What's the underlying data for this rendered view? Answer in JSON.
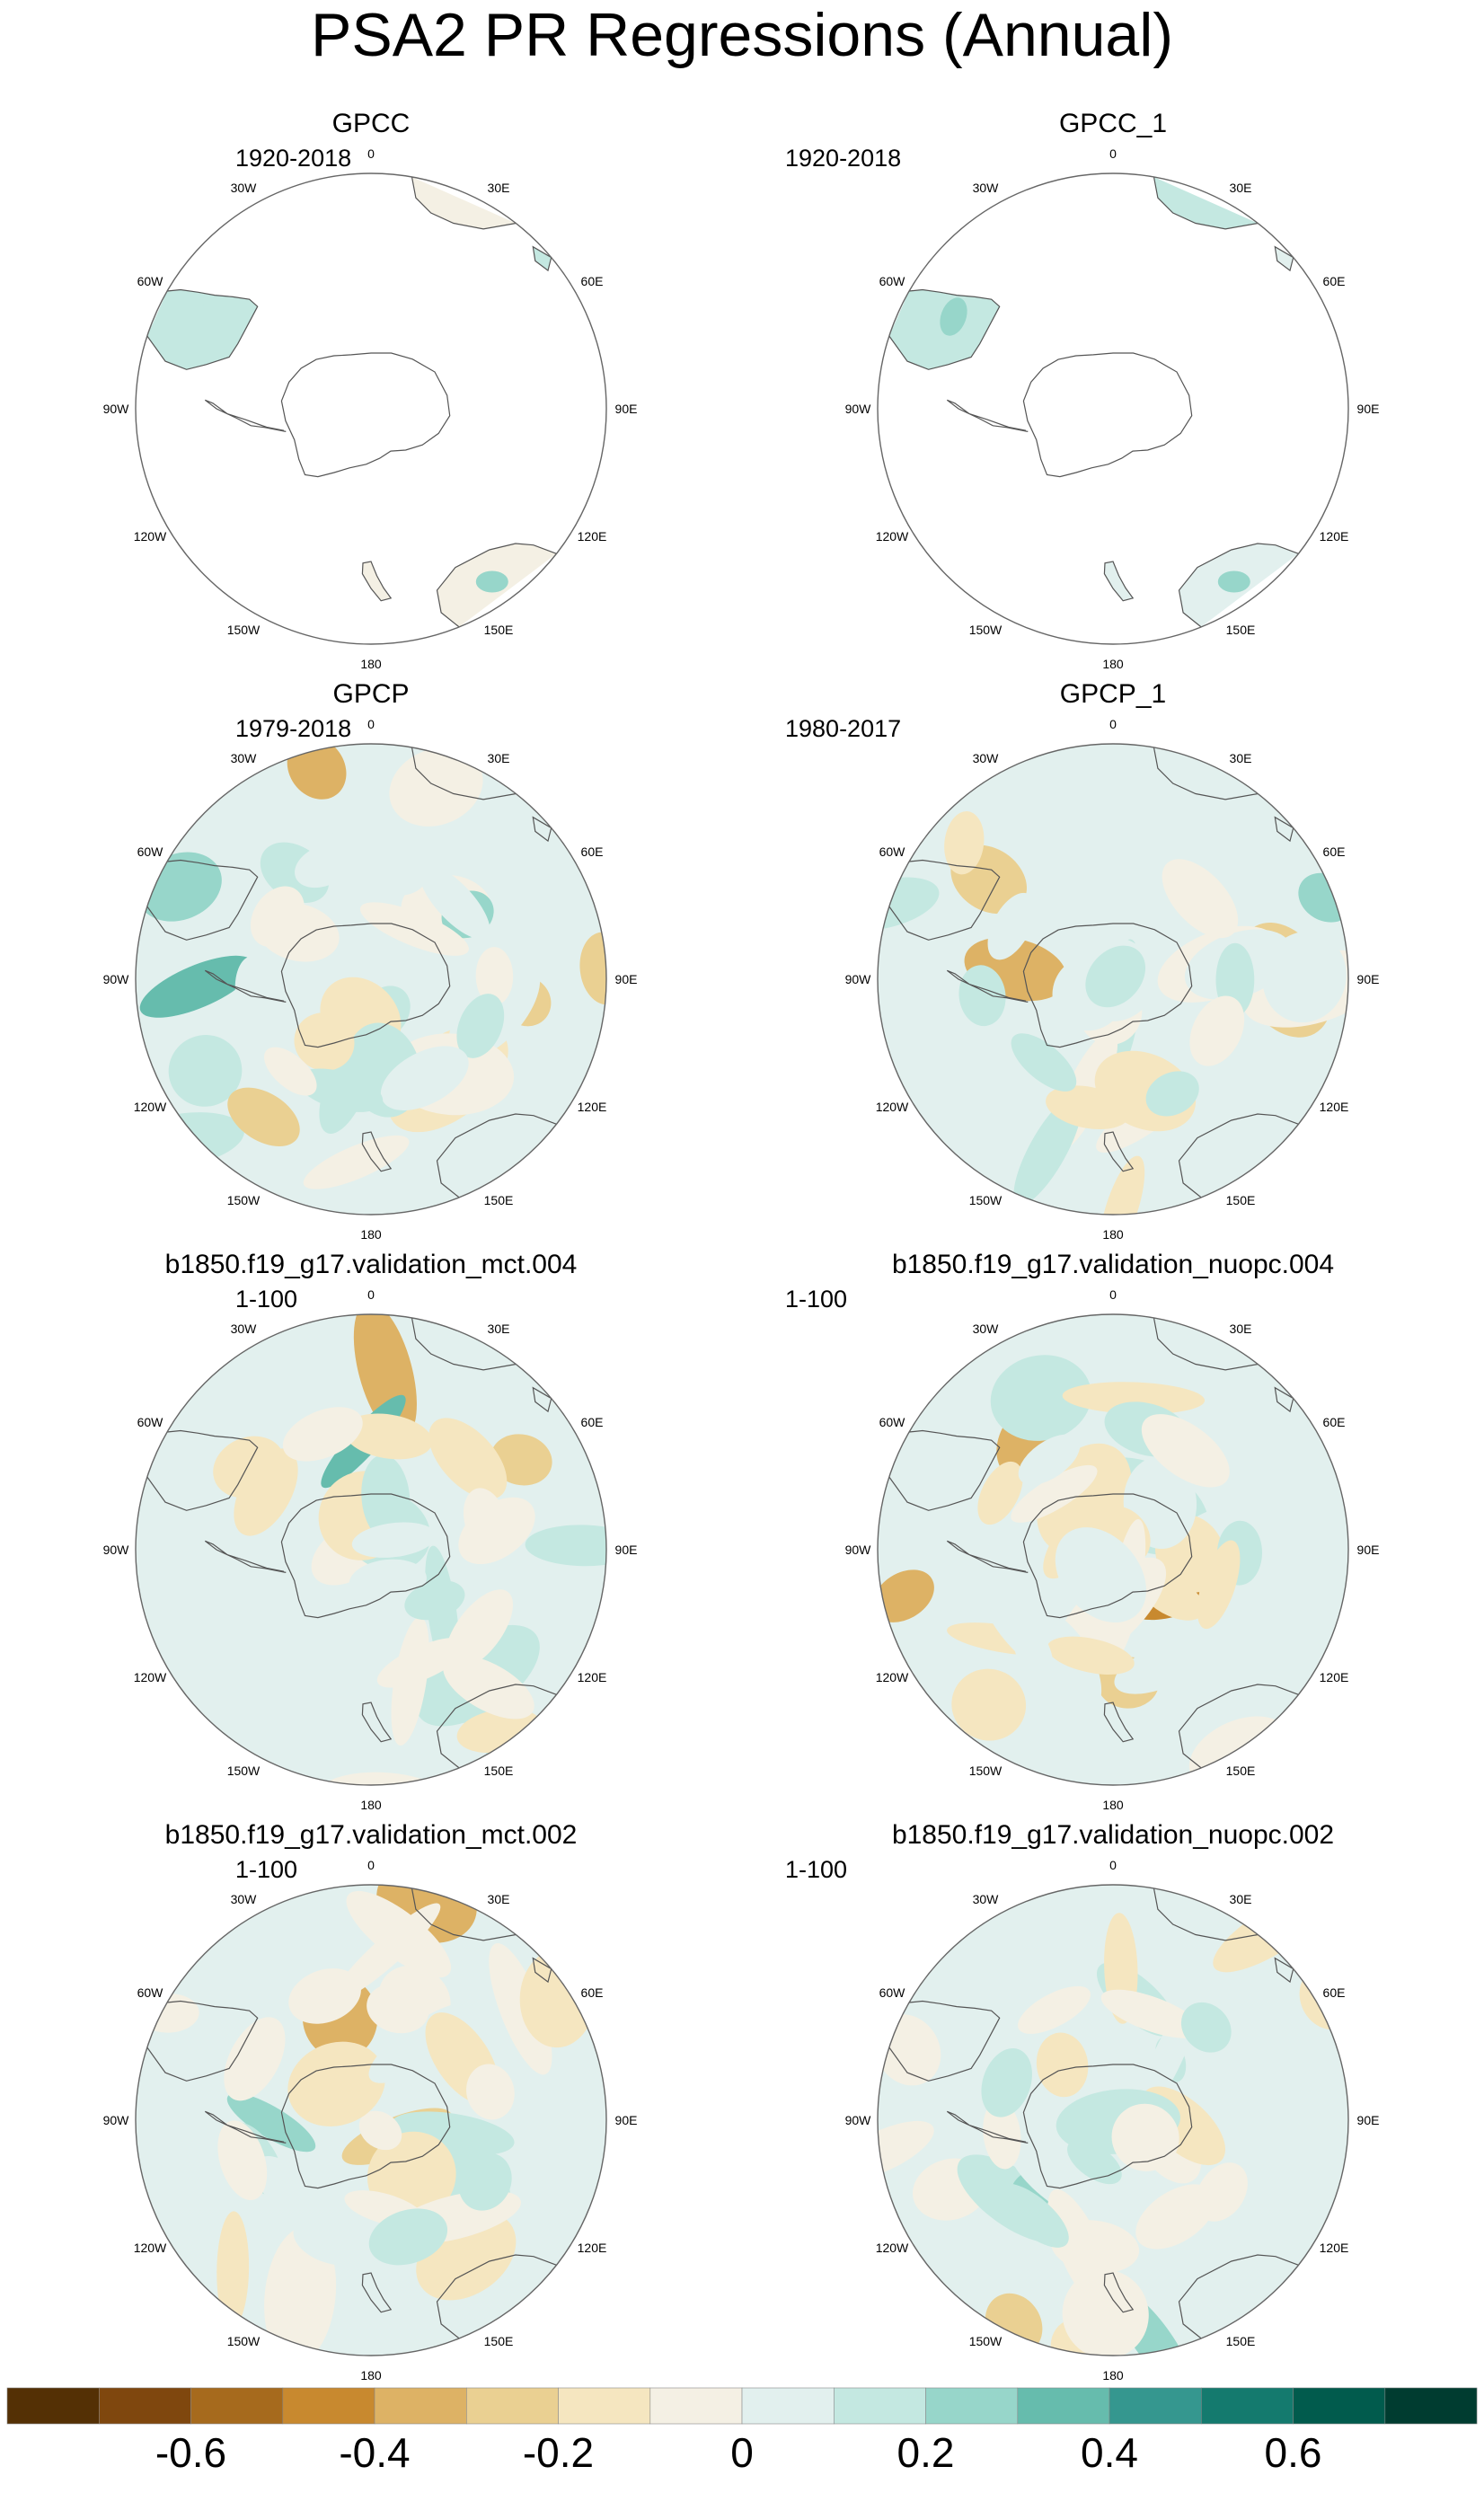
{
  "title": "PSA2 PR Regressions (Annual)",
  "panels": [
    {
      "title": "GPCC",
      "period": "1920-2018",
      "coverage": "land",
      "seed": 11
    },
    {
      "title": "GPCC_1",
      "period": "1920-2018",
      "coverage": "land",
      "seed": 23
    },
    {
      "title": "GPCP",
      "period": "1979-2018",
      "coverage": "full",
      "seed": 37
    },
    {
      "title": "GPCP_1",
      "period": "1980-2017",
      "coverage": "full",
      "seed": 41
    },
    {
      "title": "b1850.f19_g17.validation_mct.004",
      "period": "1-100",
      "coverage": "full",
      "seed": 53
    },
    {
      "title": "b1850.f19_g17.validation_nuopc.004",
      "period": "1-100",
      "coverage": "full",
      "seed": 67
    },
    {
      "title": "b1850.f19_g17.validation_mct.002",
      "period": "1-100",
      "coverage": "full",
      "seed": 79
    },
    {
      "title": "b1850.f19_g17.validation_nuopc.002",
      "period": "1-100",
      "coverage": "full",
      "seed": 97
    }
  ],
  "longitude_labels": [
    "0",
    "30E",
    "60E",
    "90E",
    "120E",
    "150E",
    "180",
    "150W",
    "120W",
    "90W",
    "60W",
    "30W"
  ],
  "colorbar": {
    "colors": [
      "#543005",
      "#7f470e",
      "#a66a1d",
      "#c8892f",
      "#ddb265",
      "#ead092",
      "#f5e6c0",
      "#f4f0e4",
      "#e2f0ee",
      "#c4e8e1",
      "#97d6ca",
      "#66bcad",
      "#35978f",
      "#147a6e",
      "#015b4d",
      "#003c30"
    ],
    "tick_labels": [
      "-0.6",
      "-0.4",
      "-0.2",
      "0",
      "0.2",
      "0.4",
      "0.6"
    ],
    "tick_values": [
      -0.6,
      -0.4,
      -0.2,
      0,
      0.2,
      0.4,
      0.6
    ],
    "min": -0.8,
    "max": 0.8
  }
}
